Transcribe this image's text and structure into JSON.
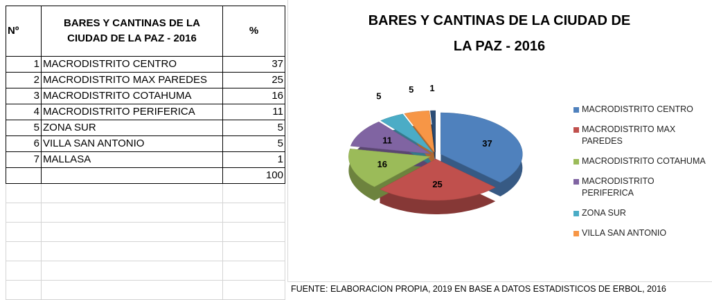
{
  "table": {
    "headers": [
      "Nº",
      "BARES Y CANTINAS DE LA CIUDAD DE LA PAZ - 2016",
      "%"
    ],
    "rows": [
      [
        1,
        "MACRODISTRITO CENTRO",
        37
      ],
      [
        2,
        "MACRODISTRITO MAX PAREDES",
        25
      ],
      [
        3,
        "MACRODISTRITO COTAHUMA",
        16
      ],
      [
        4,
        "MACRODISTRITO PERIFERICA",
        11
      ],
      [
        5,
        "ZONA SUR",
        5
      ],
      [
        6,
        "VILLA SAN ANTONIO",
        5
      ],
      [
        7,
        "MALLASA",
        1
      ]
    ],
    "total": 100
  },
  "chart_data": {
    "type": "pie",
    "title": "BARES Y CANTINAS DE LA CIUDAD DE LA PAZ - 2016",
    "categories": [
      "MACRODISTRITO CENTRO",
      "MACRODISTRITO MAX PAREDES",
      "MACRODISTRITO COTAHUMA",
      "MACRODISTRITO PERIFERICA",
      "ZONA SUR",
      "VILLA SAN ANTONIO",
      "MALLASA"
    ],
    "values": [
      37,
      25,
      16,
      11,
      5,
      5,
      1
    ],
    "colors": [
      "#4f81bd",
      "#c0504d",
      "#9bbb59",
      "#8064a2",
      "#4bacc6",
      "#f79646",
      "#2c4d75"
    ],
    "legend": "right",
    "source": "FUENTE:  ELABORACION PROPIA, 2019 EN BASE A DATOS ESTADISTICOS DE ERBOL, 2016"
  }
}
